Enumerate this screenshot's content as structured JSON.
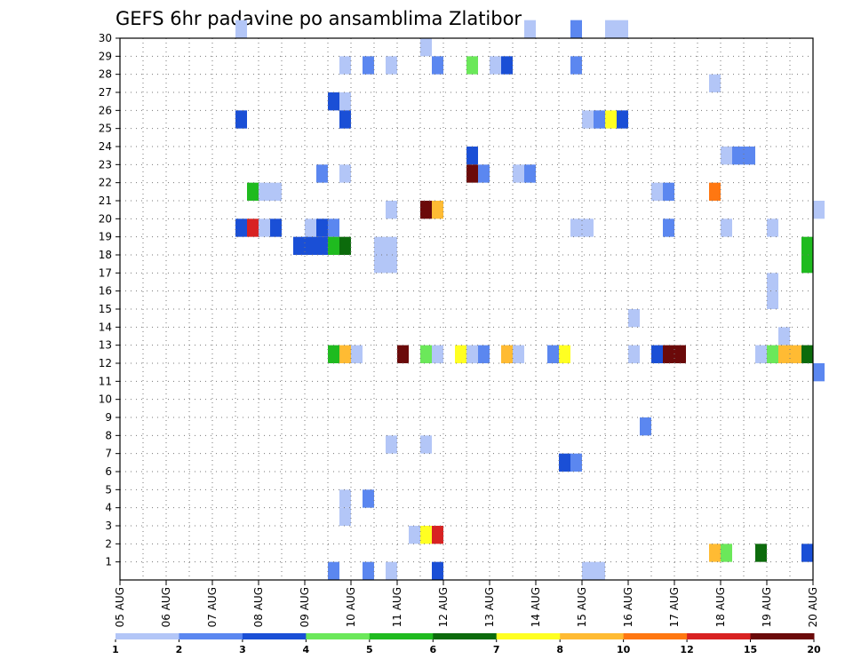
{
  "chart_data": {
    "type": "heatmap",
    "title": "GEFS 6hr padavine po ansamblima Zlatibor",
    "x_tick_labels": [
      "05 AUG",
      "06 AUG",
      "07 AUG",
      "08 AUG",
      "09 AUG",
      "10 AUG",
      "11 AUG",
      "12 AUG",
      "13 AUG",
      "14 AUG",
      "15 AUG",
      "16 AUG",
      "17 AUG",
      "18 AUG",
      "19 AUG",
      "20 AUG"
    ],
    "y_tick_labels": [
      "1",
      "2",
      "3",
      "4",
      "5",
      "6",
      "7",
      "8",
      "9",
      "10",
      "11",
      "12",
      "13",
      "14",
      "15",
      "16",
      "17",
      "18",
      "19",
      "20",
      "21",
      "22",
      "23",
      "24",
      "25",
      "26",
      "27",
      "28",
      "29",
      "30"
    ],
    "xlim_days": [
      0,
      15
    ],
    "ylim": [
      0,
      30
    ],
    "steps_per_day": 4,
    "grid": true,
    "legend": {
      "placement": "bottom",
      "colors": [
        "#b3c6f7",
        "#5b87f0",
        "#1a4fd6",
        "#6be85a",
        "#1fbb1f",
        "#0c6b0c",
        "#ffff22",
        "#ffbb33",
        "#ff7711",
        "#d82222",
        "#6b0a0a"
      ],
      "labels": [
        "1",
        "2",
        "3",
        "4",
        "5",
        "6",
        "7",
        "8",
        "10",
        "12",
        "15",
        "20"
      ]
    },
    "cells": [
      [
        30,
        10,
        0
      ],
      [
        30,
        35,
        0
      ],
      [
        30,
        39,
        1
      ],
      [
        30,
        42,
        0
      ],
      [
        30,
        43,
        0
      ],
      [
        29,
        26,
        0
      ],
      [
        28,
        19,
        0
      ],
      [
        28,
        21,
        1
      ],
      [
        28,
        23,
        0
      ],
      [
        28,
        27,
        1
      ],
      [
        28,
        30,
        3
      ],
      [
        28,
        32,
        0
      ],
      [
        28,
        33,
        2
      ],
      [
        28,
        39,
        1
      ],
      [
        27,
        51,
        0
      ],
      [
        26,
        18,
        2
      ],
      [
        26,
        19,
        0
      ],
      [
        25,
        10,
        2
      ],
      [
        25,
        19,
        2
      ],
      [
        25,
        40,
        0
      ],
      [
        25,
        41,
        1
      ],
      [
        25,
        42,
        6
      ],
      [
        25,
        43,
        2
      ],
      [
        23,
        30,
        2
      ],
      [
        23,
        52,
        0
      ],
      [
        23,
        53,
        1
      ],
      [
        23,
        54,
        1
      ],
      [
        22,
        17,
        1
      ],
      [
        22,
        19,
        0
      ],
      [
        22,
        30,
        10
      ],
      [
        22,
        31,
        1
      ],
      [
        22,
        34,
        0
      ],
      [
        22,
        35,
        1
      ],
      [
        21,
        11,
        4
      ],
      [
        21,
        12,
        0
      ],
      [
        21,
        13,
        0
      ],
      [
        21,
        46,
        0
      ],
      [
        21,
        47,
        1
      ],
      [
        21,
        51,
        8
      ],
      [
        20,
        23,
        0
      ],
      [
        20,
        26,
        10
      ],
      [
        20,
        27,
        7
      ],
      [
        20,
        60,
        0
      ],
      [
        19,
        10,
        2
      ],
      [
        19,
        11,
        9
      ],
      [
        19,
        12,
        0
      ],
      [
        19,
        13,
        2
      ],
      [
        19,
        16,
        0
      ],
      [
        19,
        17,
        2
      ],
      [
        19,
        18,
        1
      ],
      [
        19,
        39,
        0
      ],
      [
        19,
        40,
        0
      ],
      [
        19,
        47,
        1
      ],
      [
        19,
        52,
        0
      ],
      [
        19,
        56,
        0
      ],
      [
        18,
        15,
        2
      ],
      [
        18,
        16,
        2
      ],
      [
        18,
        17,
        2
      ],
      [
        18,
        18,
        4
      ],
      [
        18,
        19,
        5
      ],
      [
        18,
        22,
        0
      ],
      [
        18,
        23,
        0
      ],
      [
        18,
        59,
        4
      ],
      [
        17,
        22,
        0
      ],
      [
        17,
        23,
        0
      ],
      [
        17,
        59,
        4
      ],
      [
        16,
        56,
        0
      ],
      [
        15,
        56,
        0
      ],
      [
        14,
        44,
        0
      ],
      [
        13,
        57,
        0
      ],
      [
        12,
        18,
        4
      ],
      [
        12,
        19,
        7
      ],
      [
        12,
        20,
        0
      ],
      [
        12,
        24,
        10
      ],
      [
        12,
        26,
        3
      ],
      [
        12,
        27,
        0
      ],
      [
        12,
        29,
        6
      ],
      [
        12,
        30,
        0
      ],
      [
        12,
        31,
        1
      ],
      [
        12,
        33,
        7
      ],
      [
        12,
        34,
        0
      ],
      [
        12,
        37,
        1
      ],
      [
        12,
        38,
        6
      ],
      [
        12,
        44,
        0
      ],
      [
        12,
        46,
        2
      ],
      [
        12,
        47,
        10
      ],
      [
        12,
        48,
        10
      ],
      [
        12,
        55,
        0
      ],
      [
        12,
        56,
        3
      ],
      [
        12,
        57,
        7
      ],
      [
        12,
        58,
        7
      ],
      [
        12,
        59,
        5
      ],
      [
        11,
        60,
        1
      ],
      [
        8,
        45,
        1
      ],
      [
        7,
        23,
        0
      ],
      [
        7,
        26,
        0
      ],
      [
        6,
        38,
        2
      ],
      [
        6,
        39,
        1
      ],
      [
        4,
        19,
        0
      ],
      [
        4,
        21,
        1
      ],
      [
        3,
        19,
        0
      ],
      [
        2,
        25,
        0
      ],
      [
        2,
        26,
        6
      ],
      [
        2,
        27,
        9
      ],
      [
        1,
        51,
        7
      ],
      [
        1,
        52,
        3
      ],
      [
        1,
        55,
        5
      ],
      [
        1,
        59,
        2
      ],
      [
        0,
        18,
        1
      ],
      [
        0,
        21,
        1
      ],
      [
        0,
        23,
        0
      ],
      [
        0,
        27,
        2
      ],
      [
        0,
        40,
        0
      ],
      [
        0,
        41,
        0
      ]
    ]
  }
}
